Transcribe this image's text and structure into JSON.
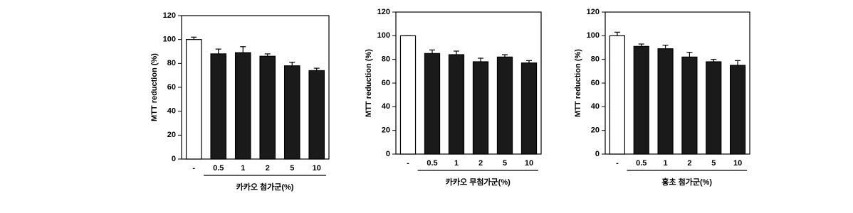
{
  "chart_data": [
    {
      "type": "bar",
      "ylabel": "MTT reduction (%)",
      "group_label": "카카오 첨가군(%)",
      "categories": [
        "-",
        "0.5",
        "1",
        "2",
        "5",
        "10"
      ],
      "values": [
        100,
        88,
        89,
        86,
        78,
        74
      ],
      "errors": [
        2,
        4,
        5,
        2,
        3,
        2
      ],
      "colors": [
        "#ffffff",
        "#1a1a1a",
        "#1a1a1a",
        "#1a1a1a",
        "#1a1a1a",
        "#1a1a1a"
      ],
      "ylim": [
        0,
        120
      ],
      "yticks": [
        0,
        20,
        40,
        60,
        80,
        100,
        120
      ]
    },
    {
      "type": "bar",
      "ylabel": "MTT reduction (%)",
      "group_label": "카카오 무첨가군(%)",
      "categories": [
        "-",
        "0.5",
        "1",
        "2",
        "5",
        "10"
      ],
      "values": [
        100,
        85,
        84,
        78,
        82,
        77
      ],
      "errors": [
        0,
        3,
        3,
        3,
        2,
        2
      ],
      "colors": [
        "#ffffff",
        "#1a1a1a",
        "#1a1a1a",
        "#1a1a1a",
        "#1a1a1a",
        "#1a1a1a"
      ],
      "ylim": [
        0,
        120
      ],
      "yticks": [
        0,
        20,
        40,
        60,
        80,
        100,
        120
      ]
    },
    {
      "type": "bar",
      "ylabel": "MTT reduction (%)",
      "group_label": "홍초 첨가군(%)",
      "categories": [
        "-",
        "0.5",
        "1",
        "2",
        "5",
        "10"
      ],
      "values": [
        100,
        91,
        89,
        82,
        78,
        75
      ],
      "errors": [
        3,
        2,
        3,
        4,
        2,
        4
      ],
      "colors": [
        "#ffffff",
        "#1a1a1a",
        "#1a1a1a",
        "#1a1a1a",
        "#1a1a1a",
        "#1a1a1a"
      ],
      "ylim": [
        0,
        120
      ],
      "yticks": [
        0,
        20,
        40,
        60,
        80,
        100,
        120
      ]
    }
  ]
}
